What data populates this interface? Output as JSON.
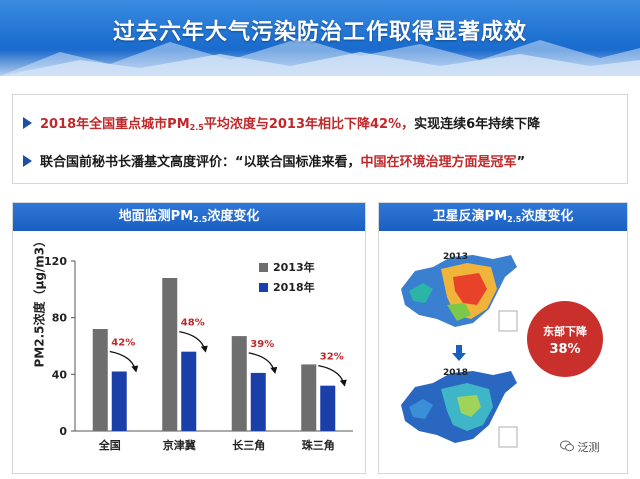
{
  "header": {
    "title": "过去六年大气污染防治工作取得显著成效"
  },
  "bullets": {
    "b1_part1": "2018年全国重点城市PM",
    "b1_sub": "2.5",
    "b1_part2": "平均浓度与2013年相比下降42%，",
    "b1_part3": "实现连续6年持续下降",
    "b2_part1": "联合国前秘书长潘基文高度评价：“以联合国标准来看，",
    "b2_part2": "中国在环境治理方面是冠军",
    "b2_part3": "”"
  },
  "left_panel": {
    "title_part1": "地面监测PM",
    "title_sub": "2.5",
    "title_part2": "浓度变化"
  },
  "right_panel": {
    "title_part1": "卫星反演PM",
    "title_sub": "2.5",
    "title_part2": "浓度变化",
    "map_top_year": "2013",
    "map_bottom_year": "2018",
    "badge_line1": "东部下降",
    "badge_line2": "38%"
  },
  "watermark": {
    "text": "泛测"
  },
  "colors": {
    "bar_2013": "#6e6e6e",
    "bar_2018": "#1a3fa8",
    "pct_red": "#c0282a",
    "header_blue": "#1a5fc0"
  },
  "chart_data": {
    "type": "bar",
    "title": "地面监测PM2.5浓度变化",
    "ylabel": "PM2.5浓度（μg/m3）",
    "categories": [
      "全国",
      "京津冀",
      "长三角",
      "珠三角"
    ],
    "series": [
      {
        "name": "2013年",
        "values": [
          72,
          108,
          67,
          47
        ]
      },
      {
        "name": "2018年",
        "values": [
          42,
          56,
          41,
          32
        ]
      }
    ],
    "annotations": [
      "42%",
      "48%",
      "39%",
      "32%"
    ],
    "ylim": [
      0,
      120
    ],
    "yticks": [
      0,
      40,
      80,
      120
    ],
    "legend": "top-right",
    "grid": false
  }
}
